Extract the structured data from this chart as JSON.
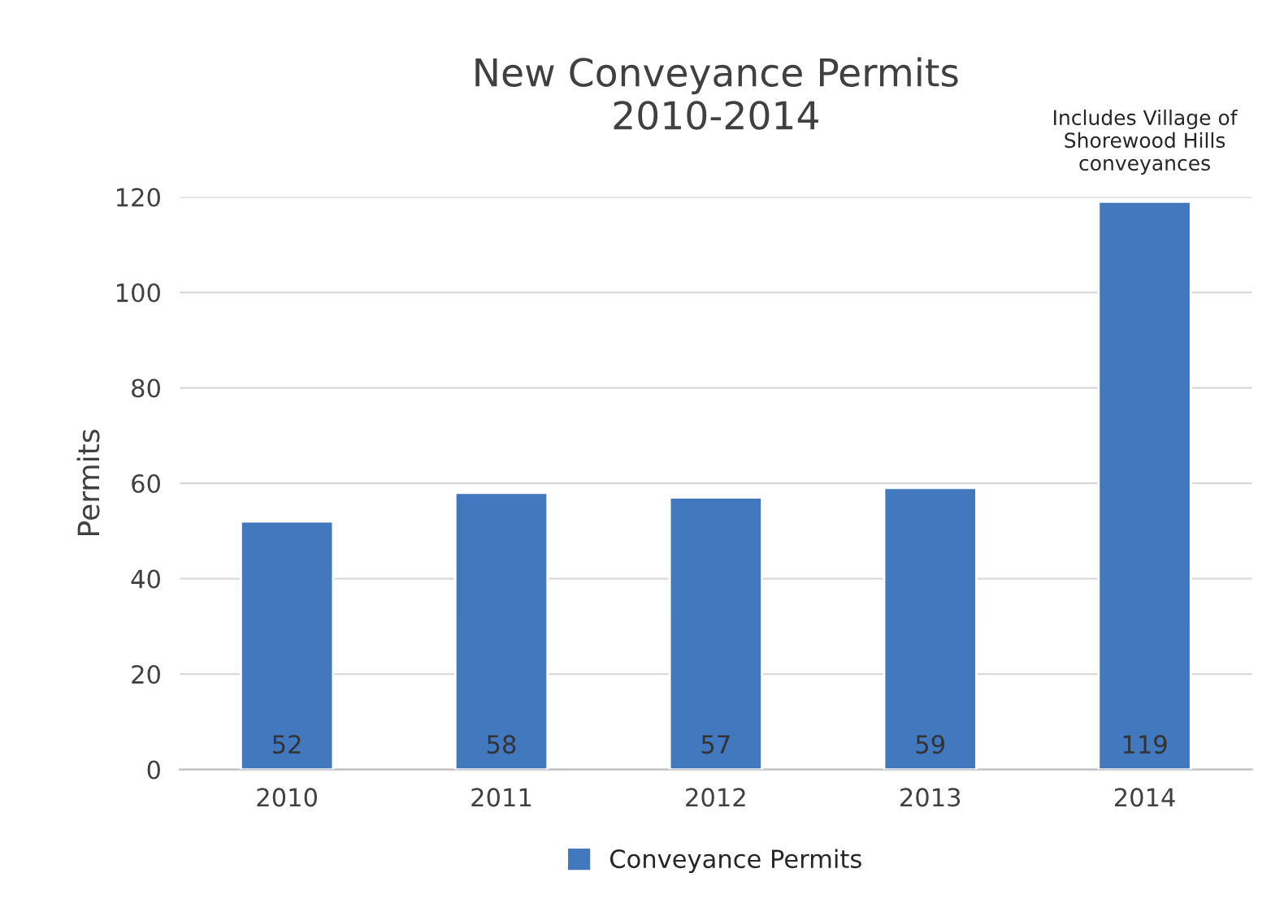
{
  "chart_data": {
    "type": "bar",
    "title": "New Conveyance Permits\n2010-2014",
    "ylabel": "Permits",
    "categories": [
      "2010",
      "2011",
      "2012",
      "2013",
      "2014"
    ],
    "series": [
      {
        "name": "Conveyance Permits",
        "color": "#4178be",
        "values": [
          52,
          58,
          57,
          59,
          119
        ]
      }
    ],
    "ylim": [
      0,
      120
    ],
    "yticks": [
      0,
      20,
      40,
      60,
      80,
      100,
      120
    ],
    "grid": "y",
    "legend": "bottom",
    "data_labels": true,
    "annotations": [
      {
        "text": "Includes Village of\nShorewood Hills\nconveyances",
        "x": "2014",
        "y": 119
      }
    ]
  }
}
